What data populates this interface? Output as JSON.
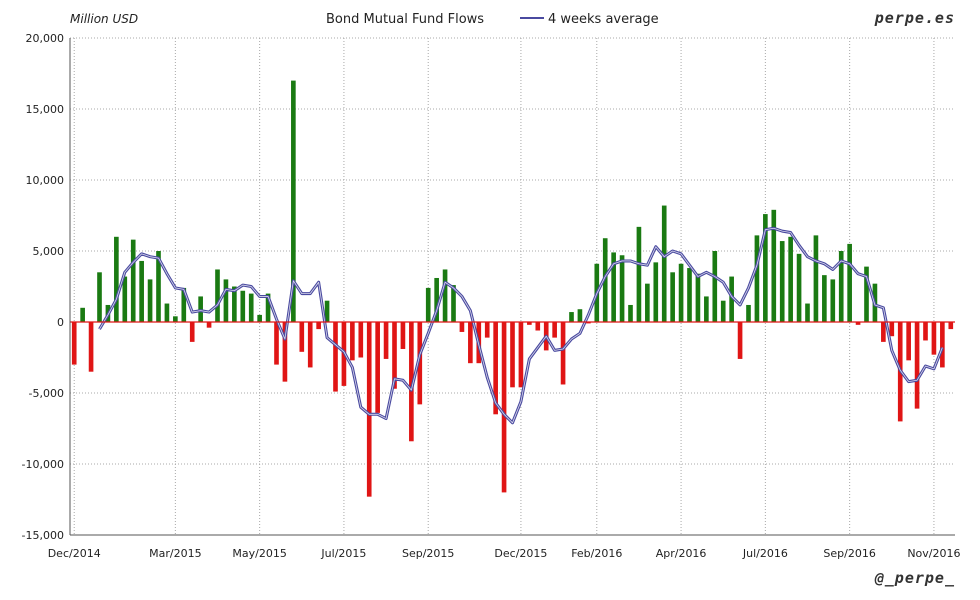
{
  "header": {
    "unit_label": "Million USD",
    "title": "Bond Mutual Fund Flows",
    "legend_label": "4 weeks average",
    "brand": "perpe.es"
  },
  "footer": {
    "handle": "@_perpe_"
  },
  "colors": {
    "positive": "#1a7a12",
    "negative": "#e01515",
    "average_line": "#4a4aa0",
    "grid": "#a8a8a8"
  },
  "chart_data": {
    "type": "bar",
    "title": "Bond Mutual Fund Flows",
    "ylabel": "Million USD",
    "ylim": [
      -15000,
      20000
    ],
    "y_ticks": [
      20000,
      15000,
      10000,
      5000,
      0,
      -5000,
      -10000,
      -15000
    ],
    "y_tick_labels": [
      "20,000",
      "15,000",
      "10,000",
      "5,000",
      "0",
      "-5,000",
      "-10,000",
      "-15,000"
    ],
    "x_tick_labels": [
      "Dec/2014",
      "Mar/2015",
      "May/2015",
      "Jul/2015",
      "Sep/2015",
      "Dec/2015",
      "Feb/2016",
      "Apr/2016",
      "Jul/2016",
      "Sep/2016",
      "Nov/2016"
    ],
    "x_tick_weeks": [
      0,
      12,
      22,
      32,
      42,
      53,
      62,
      72,
      82,
      92,
      102
    ],
    "grid": true,
    "legend_position": "top-center",
    "series": [
      {
        "name": "Bond Mutual Fund Flows",
        "kind": "bar",
        "values": [
          -3000,
          1000,
          -3500,
          3500,
          1200,
          6000,
          3200,
          5800,
          4300,
          3000,
          5000,
          1300,
          400,
          2400,
          -1400,
          1800,
          -400,
          3700,
          3000,
          2500,
          2200,
          2000,
          500,
          2000,
          -3000,
          -4200,
          17000,
          -2100,
          -3200,
          -500,
          1500,
          -4900,
          -4500,
          -2700,
          -2500,
          -12300,
          -6400,
          -2600,
          -4700,
          -1900,
          -8400,
          -5800,
          2400,
          3100,
          3700,
          2600,
          -700,
          -2900,
          -2900,
          -1100,
          -6500,
          -12000,
          -4600,
          -4600,
          -200,
          -600,
          -2000,
          -1100,
          -4400,
          700,
          900,
          -100,
          4100,
          5900,
          4900,
          4700,
          1200,
          6700,
          2700,
          4200,
          8200,
          3500,
          4100,
          3800,
          3400,
          1800,
          5000,
          1500,
          3200,
          -2600,
          1200,
          6100,
          7600,
          7900,
          5700,
          6000,
          4800,
          1300,
          6100,
          3300,
          3000,
          5000,
          5500,
          -200,
          3900,
          2700,
          -1400,
          -1000,
          -7000,
          -2700,
          -6100,
          -1300,
          -2300,
          -3200,
          -500
        ]
      },
      {
        "name": "4 weeks average",
        "kind": "line",
        "values": [
          null,
          null,
          null,
          -500,
          500,
          1600,
          3500,
          4200,
          4800,
          4600,
          4500,
          3400,
          2400,
          2300,
          700,
          800,
          700,
          1200,
          2300,
          2200,
          2600,
          2500,
          1800,
          1800,
          200,
          -1200,
          2900,
          2000,
          2000,
          2800,
          -1100,
          -1600,
          -2100,
          -3200,
          -6000,
          -6500,
          -6500,
          -6800,
          -4000,
          -4100,
          -4800,
          -2300,
          -800,
          800,
          2800,
          2400,
          1800,
          800,
          -1600,
          -3900,
          -5700,
          -6500,
          -7100,
          -5600,
          -2600,
          -1800,
          -1000,
          -2000,
          -1900,
          -1200,
          -800,
          500,
          2000,
          3200,
          4100,
          4300,
          4300,
          4100,
          4000,
          5300,
          4600,
          5000,
          4800,
          4000,
          3200,
          3500,
          3200,
          2800,
          1800,
          1200,
          2400,
          4000,
          6500,
          6600,
          6400,
          6300,
          5400,
          4600,
          4300,
          4100,
          3700,
          4300,
          4100,
          3400,
          3200,
          1200,
          1000,
          -2000,
          -3400,
          -4200,
          -4100,
          -3100,
          -3300,
          -1800
        ]
      }
    ]
  }
}
